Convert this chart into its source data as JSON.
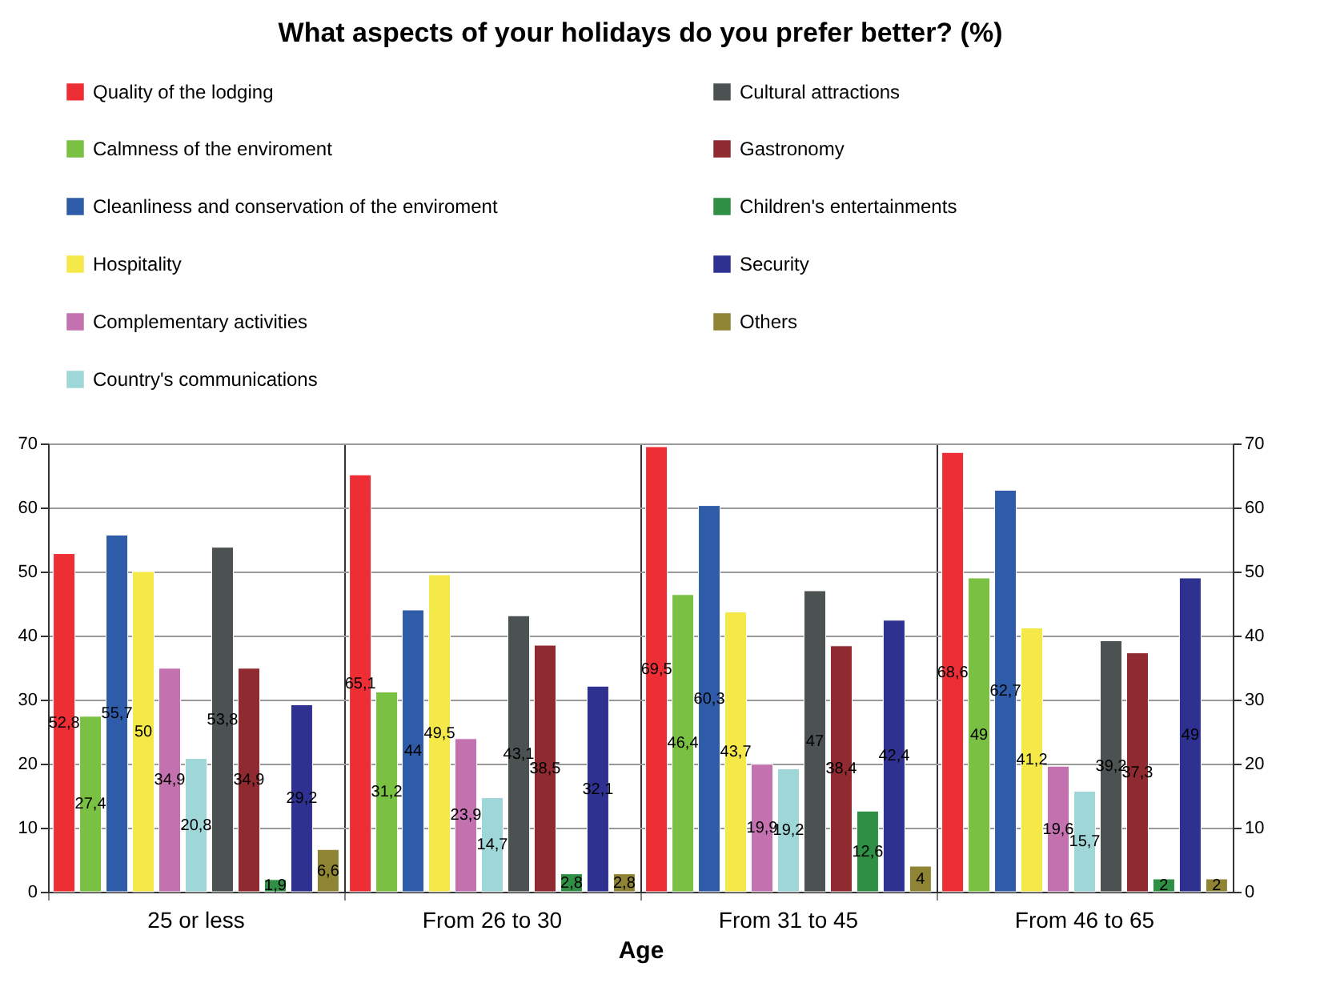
{
  "chart_data": {
    "type": "bar",
    "title": "What aspects of your holidays do you prefer better? (%)",
    "xlabel": "Age",
    "categories": [
      "25 or less",
      "From 26 to 30",
      "From 31 to 45",
      "From 46 to 65"
    ],
    "series": [
      {
        "name": "Quality of the lodging",
        "color": "#ee2e35",
        "values": [
          52.8,
          65.1,
          69.5,
          68.6
        ],
        "value_labels": [
          "52,8",
          "65,1",
          "69,5",
          "68,6"
        ]
      },
      {
        "name": "Calmness of the enviroment",
        "color": "#7ac143",
        "values": [
          27.4,
          31.2,
          46.4,
          49
        ],
        "value_labels": [
          "27,4",
          "31,2",
          "46,4",
          "49"
        ]
      },
      {
        "name": "Cleanliness and conservation of the enviroment",
        "color": "#2e5ca8",
        "values": [
          55.7,
          44,
          60.3,
          62.7
        ],
        "value_labels": [
          "55,7",
          "44",
          "60,3",
          "62,7"
        ]
      },
      {
        "name": "Hospitality",
        "color": "#f5e94a",
        "values": [
          50,
          49.5,
          43.7,
          41.2
        ],
        "value_labels": [
          "50",
          "49,5",
          "43,7",
          "41,2"
        ]
      },
      {
        "name": "Complementary activities",
        "color": "#c471b0",
        "values": [
          34.9,
          23.9,
          19.9,
          19.6
        ],
        "value_labels": [
          "34,9",
          "23,9",
          "19,9",
          "19,6"
        ]
      },
      {
        "name": "Country's communications",
        "color": "#9fd6d8",
        "values": [
          20.8,
          14.7,
          19.2,
          15.7
        ],
        "value_labels": [
          "20,8",
          "14,7",
          "19,2",
          "15,7"
        ]
      },
      {
        "name": "Cultural attractions",
        "color": "#4b5251",
        "values": [
          53.8,
          43.1,
          47,
          39.2
        ],
        "value_labels": [
          "53,8",
          "43,1",
          "47",
          "39,2"
        ]
      },
      {
        "name": "Gastronomy",
        "color": "#8e2a30",
        "values": [
          34.9,
          38.5,
          38.4,
          37.3
        ],
        "value_labels": [
          "34,9",
          "38,5",
          "38,4",
          "37,3"
        ]
      },
      {
        "name": "Children's entertainments",
        "color": "#2f8f45",
        "values": [
          1.9,
          2.8,
          12.6,
          2
        ],
        "value_labels": [
          "1,9",
          "2,8",
          "12,6",
          "2"
        ]
      },
      {
        "name": "Security",
        "color": "#2e3190",
        "values": [
          29.2,
          32.1,
          42.4,
          49
        ],
        "value_labels": [
          "29,2",
          "32,1",
          "42,4",
          "49"
        ]
      },
      {
        "name": "Others",
        "color": "#8f8433",
        "values": [
          6.6,
          2.8,
          4,
          2
        ],
        "value_labels": [
          "6,6",
          "2,8",
          "4",
          "2"
        ]
      }
    ],
    "ylim": [
      0,
      70
    ],
    "yticks": [
      0,
      10,
      20,
      30,
      40,
      50,
      60,
      70
    ],
    "y2lim": [
      0,
      70
    ],
    "y2ticks": [
      0,
      10,
      20,
      30,
      40,
      50,
      60,
      70
    ],
    "grid": "y",
    "legend": "top"
  }
}
